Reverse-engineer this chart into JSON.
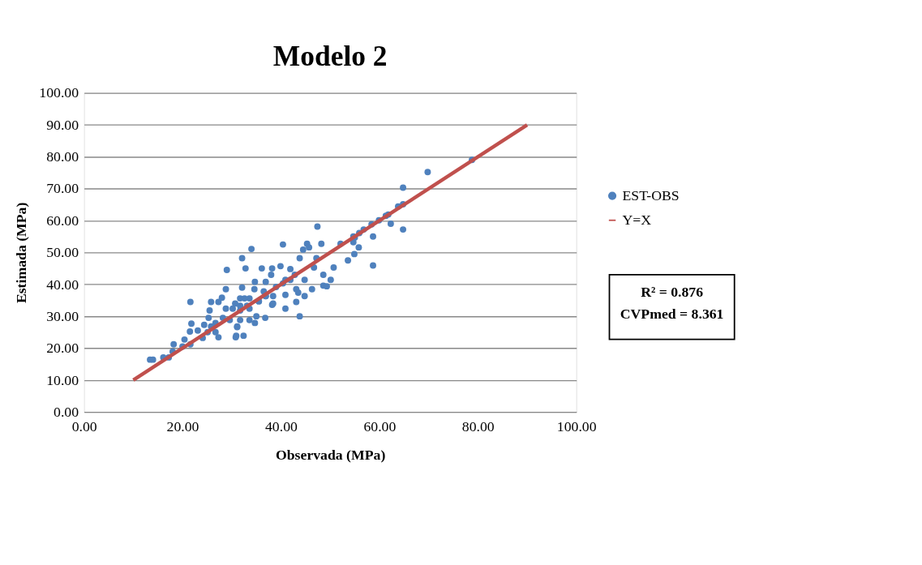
{
  "chart_data": {
    "type": "scatter",
    "title": "Modelo 2",
    "xlabel": "Observada (MPa)",
    "ylabel": "Estimada (MPa)",
    "xlim": [
      0,
      100
    ],
    "ylim": [
      0,
      100
    ],
    "xticks": [
      {
        "value": 0,
        "label": "0.00"
      },
      {
        "value": 20,
        "label": "20.00"
      },
      {
        "value": 40,
        "label": "40.00"
      },
      {
        "value": 60,
        "label": "60.00"
      },
      {
        "value": 80,
        "label": "80.00"
      },
      {
        "value": 100,
        "label": "100.00"
      }
    ],
    "yticks": [
      {
        "value": 0,
        "label": "0.00"
      },
      {
        "value": 10,
        "label": "10.00"
      },
      {
        "value": 20,
        "label": "20.00"
      },
      {
        "value": 30,
        "label": "30.00"
      },
      {
        "value": 40,
        "label": "40.00"
      },
      {
        "value": 50,
        "label": "50.00"
      },
      {
        "value": 60,
        "label": "60.00"
      },
      {
        "value": 70,
        "label": "70.00"
      },
      {
        "value": 80,
        "label": "80.00"
      },
      {
        "value": 90,
        "label": "90.00"
      },
      {
        "value": 100,
        "label": "100.00"
      }
    ],
    "grid": "y",
    "legend": "right",
    "annotations": [
      "R² = 0.876",
      "CVPmed = 8.361"
    ],
    "series": [
      {
        "name": "EST-OBS",
        "marker": "circle",
        "color": "#4f81bd",
        "x": [
          78.8,
          69.8,
          64.8,
          64.8,
          63.8,
          61.8,
          61.3,
          59.9,
          58.4,
          62.3,
          64.8,
          58.7,
          56.8,
          55.9,
          54.7,
          54.7,
          55.8,
          54.9,
          58.7,
          47.4,
          40.4,
          34.0,
          32.1,
          32.8,
          36.1,
          38.2,
          39.9,
          41.9,
          45.3,
          45.7,
          44.5,
          48.2,
          52.1,
          55.0,
          43.8,
          47.2,
          46.7,
          50.7,
          53.6,
          48.6,
          50.1,
          44.8,
          42.8,
          41.9,
          40.9,
          38.0,
          36.9,
          34.7,
          34.6,
          32.1,
          36.5,
          39.0,
          40.4,
          43.1,
          43.5,
          44.8,
          46.3,
          48.6,
          49.3,
          40.9,
          38.4,
          36.9,
          35.5,
          33.6,
          31.7,
          30.7,
          33.1,
          38.2,
          40.9,
          43.1,
          43.8,
          36.8,
          35.0,
          34.7,
          33.6,
          31.7,
          31.1,
          30.9,
          32.4,
          31.7,
          13.4,
          16.1,
          17.2,
          18.0,
          18.2,
          20.0,
          20.4,
          21.6,
          21.6,
          21.8,
          21.5,
          23.1,
          24.1,
          25.1,
          25.8,
          25.3,
          25.5,
          25.8,
          27.3,
          28.0,
          28.8,
          27.3,
          30.8,
          26.7,
          28.2,
          29.6,
          31.1,
          30.2,
          31.7,
          32.6,
          28.8,
          26.7,
          24.4,
          33.6,
          35.5,
          38.4,
          36.9,
          14.0,
          29.0
        ],
        "values": [
          79.0,
          75.2,
          70.3,
          65.1,
          64.4,
          61.9,
          61.5,
          60.1,
          58.8,
          59.0,
          57.2,
          55.0,
          57.2,
          56.1,
          55.0,
          53.2,
          51.6,
          49.5,
          45.9,
          58.1,
          52.5,
          51.1,
          48.2,
          45.0,
          45.0,
          45.0,
          45.7,
          44.8,
          52.7,
          51.6,
          50.9,
          52.7,
          52.7,
          54.7,
          48.2,
          48.2,
          45.3,
          45.3,
          47.5,
          43.0,
          41.4,
          41.4,
          43.0,
          41.4,
          41.4,
          43.0,
          40.8,
          40.8,
          38.5,
          39.0,
          37.8,
          39.2,
          40.3,
          38.5,
          37.4,
          36.3,
          38.5,
          39.6,
          39.4,
          36.7,
          36.3,
          36.3,
          34.7,
          35.6,
          35.6,
          34.0,
          33.3,
          33.6,
          32.4,
          34.5,
          30.0,
          29.5,
          30.0,
          27.9,
          28.8,
          28.8,
          26.6,
          23.9,
          23.9,
          31.8,
          16.4,
          17.1,
          17.1,
          18.9,
          21.2,
          20.5,
          22.7,
          21.2,
          34.5,
          27.7,
          25.2,
          25.5,
          23.2,
          25.0,
          26.8,
          29.5,
          31.8,
          34.5,
          34.5,
          35.8,
          38.5,
          23.4,
          23.4,
          27.9,
          29.5,
          28.8,
          26.8,
          32.4,
          33.3,
          35.6,
          32.4,
          25.0,
          27.3,
          32.4,
          34.7,
          34.0,
          36.3,
          16.4,
          44.5
        ]
      },
      {
        "name": "Y=X",
        "type": "line",
        "color": "#c0504d",
        "x": [
          10,
          90
        ],
        "values": [
          10,
          90
        ]
      }
    ]
  }
}
